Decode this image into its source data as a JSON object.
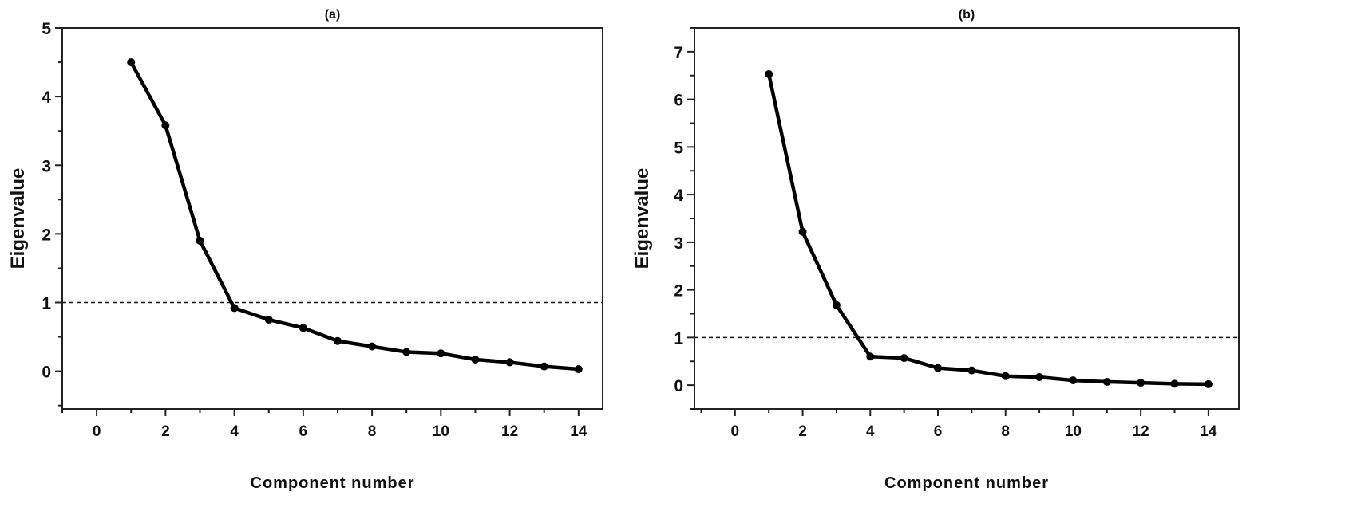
{
  "chart_data": [
    {
      "type": "line",
      "title": "(a)",
      "xlabel": "Component number",
      "ylabel": "Eigenvalue",
      "x": [
        1,
        2,
        3,
        4,
        5,
        6,
        7,
        8,
        9,
        10,
        11,
        12,
        13,
        14
      ],
      "values": [
        4.5,
        3.58,
        1.9,
        0.92,
        0.75,
        0.63,
        0.44,
        0.36,
        0.28,
        0.26,
        0.17,
        0.13,
        0.07,
        0.03
      ],
      "xlim": [
        -1,
        14.7
      ],
      "ylim": [
        -0.55,
        5
      ],
      "xticks": [
        "0",
        "2",
        "4",
        "6",
        "8",
        "10",
        "12",
        "14"
      ],
      "yticks": [
        "0",
        "1",
        "2",
        "3",
        "4",
        "5"
      ],
      "reference_line": 1,
      "color": "#000000"
    },
    {
      "type": "line",
      "title": "(b)",
      "xlabel": "Component number",
      "ylabel": "Eigenvalue",
      "x": [
        1,
        2,
        3,
        4,
        5,
        6,
        7,
        8,
        9,
        10,
        11,
        12,
        13,
        14
      ],
      "values": [
        6.53,
        3.22,
        1.68,
        0.6,
        0.57,
        0.36,
        0.31,
        0.19,
        0.17,
        0.1,
        0.07,
        0.05,
        0.03,
        0.02
      ],
      "xlim": [
        -1.2,
        14.9
      ],
      "ylim": [
        -0.5,
        7.5
      ],
      "xticks": [
        "0",
        "2",
        "4",
        "6",
        "8",
        "10",
        "12",
        "14"
      ],
      "yticks": [
        "0",
        "1",
        "2",
        "3",
        "4",
        "5",
        "6",
        "7"
      ],
      "reference_line": 1,
      "color": "#000000"
    }
  ]
}
